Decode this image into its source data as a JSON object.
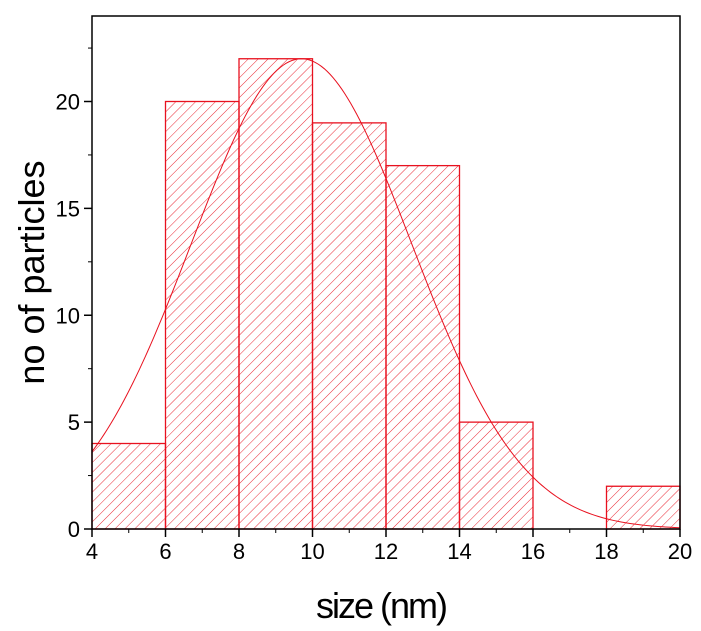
{
  "chart_data": {
    "type": "bar",
    "title": "",
    "xlabel": "size (nm)",
    "ylabel": "no of particles",
    "xlim": [
      4,
      20
    ],
    "ylim": [
      0,
      24
    ],
    "x_ticks": [
      "4",
      "6",
      "8",
      "10",
      "12",
      "14",
      "16",
      "18",
      "20"
    ],
    "y_ticks": [
      "0",
      "5",
      "10",
      "15",
      "20"
    ],
    "bins": [
      {
        "start": 4,
        "end": 6,
        "count": 4
      },
      {
        "start": 6,
        "end": 8,
        "count": 20
      },
      {
        "start": 8,
        "end": 10,
        "count": 22
      },
      {
        "start": 10,
        "end": 12,
        "count": 19
      },
      {
        "start": 12,
        "end": 14,
        "count": 17
      },
      {
        "start": 14,
        "end": 16,
        "count": 5
      },
      {
        "start": 16,
        "end": 18,
        "count": 0
      },
      {
        "start": 18,
        "end": 20,
        "count": 2
      }
    ],
    "fit_curve": {
      "type": "gaussian",
      "peak_x": 9.7,
      "peak_y": 22,
      "sigma": 3.0
    },
    "bar_fill": "hatched",
    "colors": {
      "bars": "#e8111f",
      "fit": "#e8111f",
      "axes": "#000000"
    },
    "grid": false
  }
}
